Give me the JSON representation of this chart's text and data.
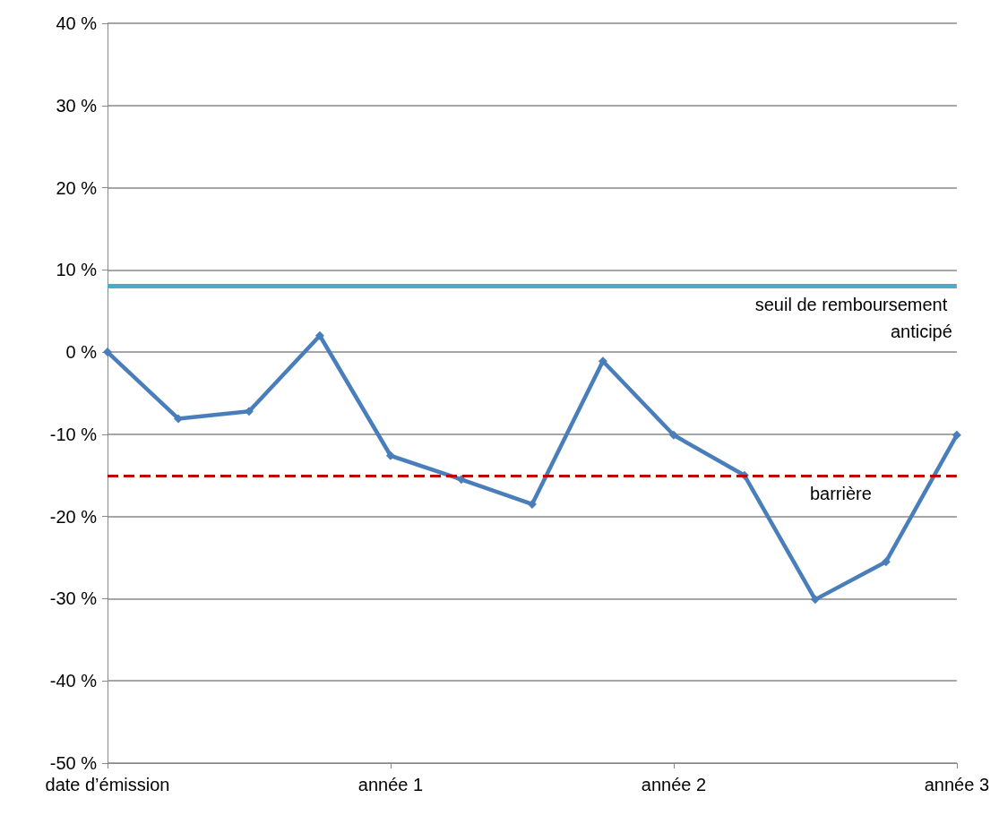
{
  "chart_data": {
    "type": "line",
    "categories": [
      "date d’émission",
      null,
      null,
      null,
      "année 1",
      null,
      null,
      null,
      "année 2",
      null,
      null,
      null,
      "année 3"
    ],
    "series": [
      {
        "color": "#4a7ebb",
        "values": [
          0,
          -8.1,
          -7.2,
          2,
          -12.6,
          -15.5,
          -18.5,
          -1.1,
          -10.1,
          -15,
          -30.1,
          -25.5,
          -10.1
        ]
      }
    ],
    "ylim": [
      -50,
      40
    ],
    "yticks": [
      {
        "value": -50,
        "label": "-50 %"
      },
      {
        "value": -40,
        "label": "-40 %"
      },
      {
        "value": -30,
        "label": "-30 %"
      },
      {
        "value": -20,
        "label": "-20 %"
      },
      {
        "value": -10,
        "label": "-10 %"
      },
      {
        "value": 0,
        "label": "0 %"
      },
      {
        "value": 10,
        "label": "10 %"
      },
      {
        "value": 20,
        "label": "20 %"
      },
      {
        "value": 30,
        "label": "30 %"
      },
      {
        "value": 40,
        "label": "40 %"
      }
    ],
    "ref_lines": [
      {
        "axis": "y",
        "value": 8,
        "label": "seuil de remboursement anticipé",
        "color": "#4bacc6",
        "line_style": "solid"
      },
      {
        "axis": "y",
        "value": -15,
        "label": "barrière",
        "color": "#c00000",
        "line_style": "dashed"
      }
    ],
    "grid": "y",
    "marker": "diamond",
    "line_style": "solid"
  }
}
